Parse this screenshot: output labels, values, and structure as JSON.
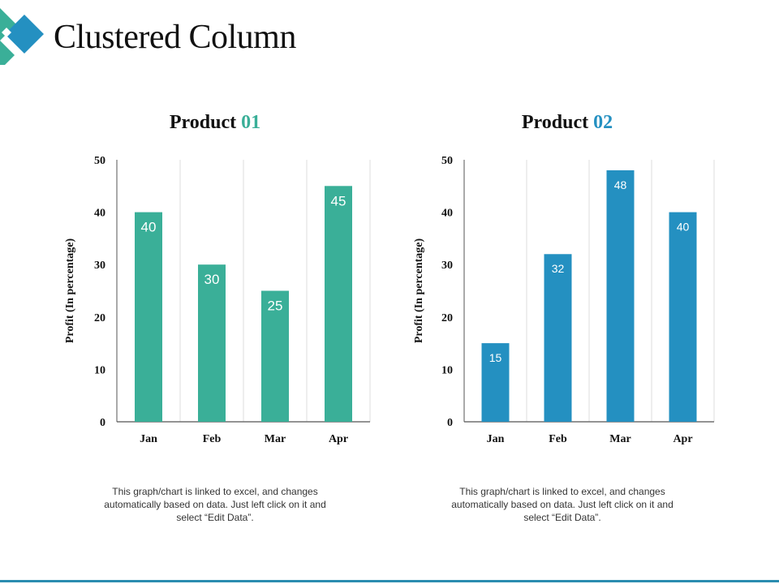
{
  "page": {
    "title": "Clustered Column",
    "accent_colors": {
      "teal": "#3aaf98",
      "blue": "#2490c1",
      "footer": "#2b8db0"
    },
    "footer_rule_color": "#2b8db0"
  },
  "chart_data": [
    {
      "type": "bar",
      "title_main": "Product ",
      "title_number": "01",
      "title_number_color": "#3aaf98",
      "categories": [
        "Jan",
        "Feb",
        "Mar",
        "Apr"
      ],
      "values": [
        40,
        30,
        25,
        45
      ],
      "data_labels": [
        "40",
        "30",
        "25",
        "45"
      ],
      "bar_color": "#3aaf98",
      "ylabel": "Profit (In percentage)",
      "xlabel": "",
      "ylim": [
        0,
        50
      ],
      "yticks": [
        0,
        10,
        20,
        30,
        40,
        50
      ],
      "ytick_labels": [
        "0",
        "10",
        "20",
        "30",
        "40",
        "50"
      ],
      "grid": "vertical",
      "legend": "none",
      "note": "This graph/chart is linked to excel, and changes automatically based on data. Just left click on it and select “Edit Data”."
    },
    {
      "type": "bar",
      "title_main": "Product ",
      "title_number": "02",
      "title_number_color": "#2490c1",
      "categories": [
        "Jan",
        "Feb",
        "Mar",
        "Apr"
      ],
      "values": [
        15,
        32,
        48,
        40
      ],
      "data_labels": [
        "15",
        "32",
        "48",
        "40"
      ],
      "bar_color": "#2490c1",
      "ylabel": "Profit (In percentage)",
      "xlabel": "",
      "ylim": [
        0,
        50
      ],
      "yticks": [
        0,
        10,
        20,
        30,
        40,
        50
      ],
      "ytick_labels": [
        "0",
        "10",
        "20",
        "30",
        "40",
        "50"
      ],
      "grid": "vertical",
      "legend": "none",
      "note": "This graph/chart is linked to excel, and changes automatically based on data. Just left click on it and select “Edit Data”."
    }
  ]
}
